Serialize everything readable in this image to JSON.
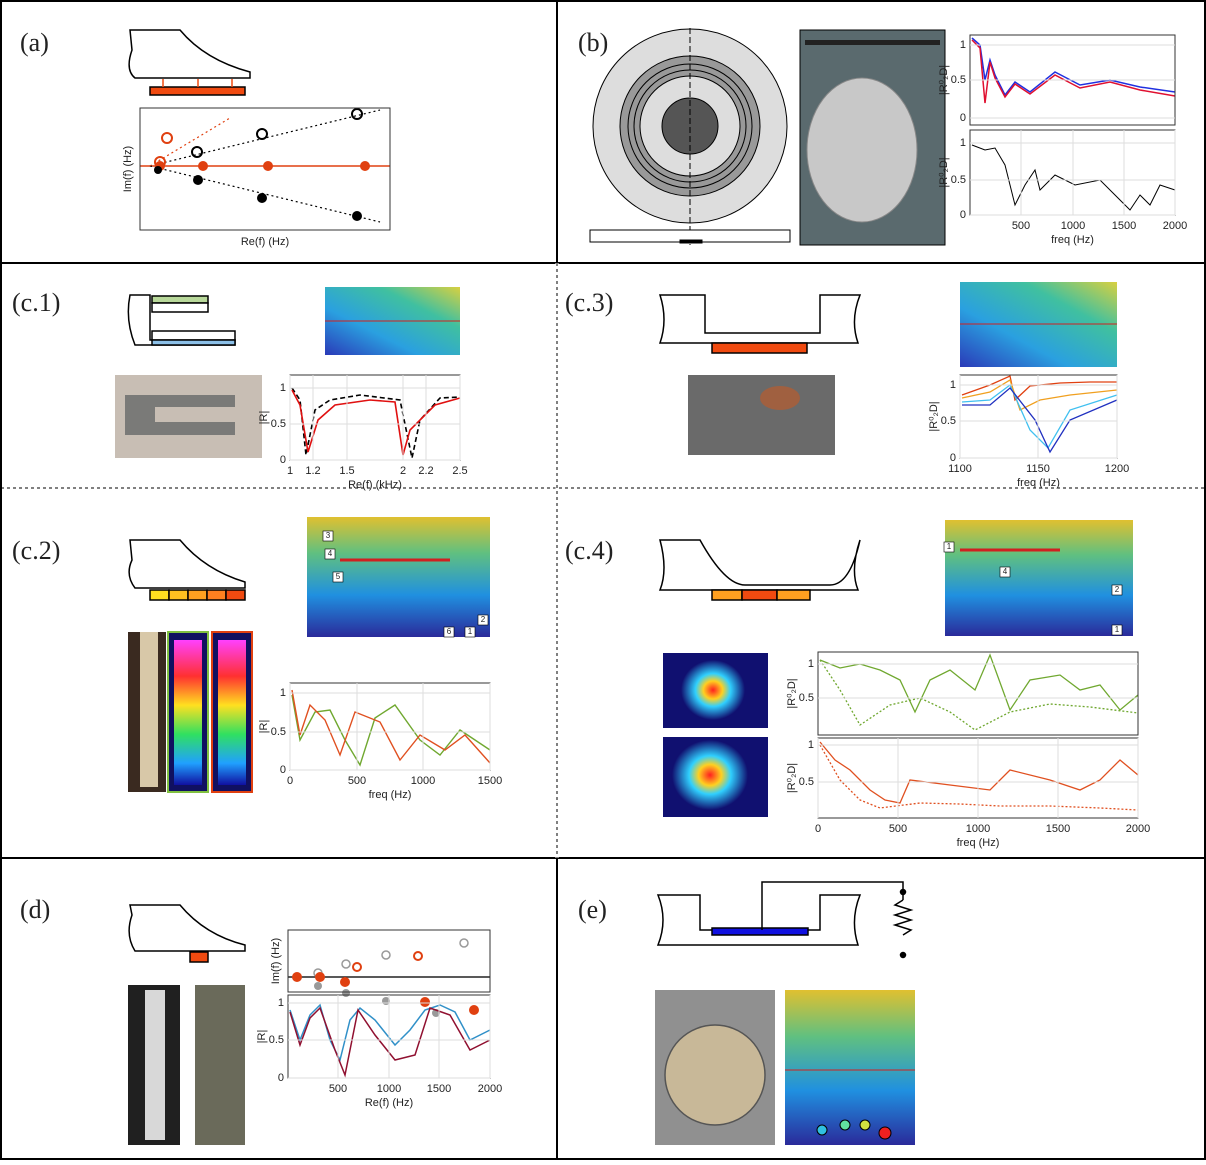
{
  "panel_labels": [
    "(a)",
    "(b)",
    "(c.1)",
    "(c.3)",
    "(c.2)",
    "(c.4)",
    "(d)",
    "(e)"
  ],
  "plots": [
    {
      "ylabel": "Im(f) (Hz)",
      "xlabel": "Re(f) (Hz)"
    },
    {
      "ylabel": "|R⁰₂D|",
      "yticks": [
        "1",
        "0.5",
        "0"
      ]
    },
    {
      "ylabel": "|R⁰₂D|",
      "xlabel": "freq (Hz)",
      "xticks": [
        "500",
        "1000",
        "1500",
        "2000"
      ],
      "yticks": [
        "1",
        "0.5",
        "0"
      ]
    },
    {
      "ylabel": "|R|",
      "xlabel": "Re(f) (kHz)",
      "xticks": [
        "1",
        "1.2",
        "1.5",
        "2",
        "2.2",
        "2.5"
      ],
      "yticks": [
        "1",
        "0.5",
        "0"
      ]
    },
    {
      "ylabel": "|R⁰₂D|",
      "xlabel": "freq (Hz)",
      "xticks": [
        "1100",
        "1150",
        "1200"
      ],
      "yticks": [
        "1",
        "0.5",
        "0"
      ]
    },
    {
      "ylabel": "|R|",
      "xlabel": "freq (Hz)",
      "xticks": [
        "0",
        "500",
        "1000",
        "1500"
      ],
      "yticks": [
        "1",
        "0.5",
        "0"
      ]
    },
    {
      "ylabel": "|R⁰₂D|",
      "yticks": [
        "1",
        "0.5"
      ]
    },
    {
      "ylabel": "|R⁰₂D|",
      "xlabel": "freq (Hz)",
      "xticks": [
        "0",
        "500",
        "1000",
        "1500",
        "2000"
      ],
      "yticks": [
        "1",
        "0.5"
      ]
    },
    {
      "ylabel": "Im(f) (Hz)"
    },
    {
      "ylabel": "|R|",
      "xlabel": "Re(f) (Hz)",
      "xticks": [
        "500",
        "1000",
        "1500",
        "2000"
      ],
      "yticks": [
        "1",
        "0.5",
        "0"
      ]
    }
  ],
  "annotations": [
    "3",
    "4",
    "5",
    "2",
    "6",
    "1",
    "1",
    "2",
    "4",
    "1"
  ]
}
